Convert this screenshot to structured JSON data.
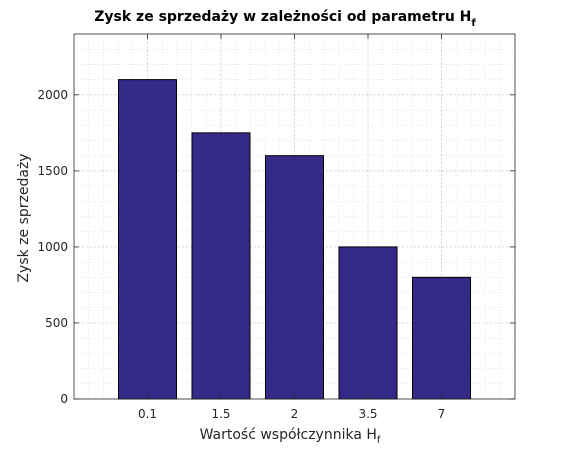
{
  "chart_data": {
    "type": "bar",
    "title": "Zysk ze sprzedaży w zależności od parametru H",
    "title_subscript": "f",
    "xlabel": "Wartość współczynnika H",
    "xlabel_subscript": "f",
    "ylabel": "Zysk ze sprzedaży",
    "categories": [
      "0.1",
      "1.5",
      "2",
      "3.5",
      "7"
    ],
    "values": [
      2100,
      1750,
      1600,
      1000,
      800
    ],
    "ylim": [
      0,
      2400
    ],
    "yticks": [
      0,
      500,
      1000,
      1500,
      2000
    ],
    "grid": true,
    "minor_grid": true,
    "bar_color": "#352a87",
    "bar_edge_color": "#000000"
  }
}
